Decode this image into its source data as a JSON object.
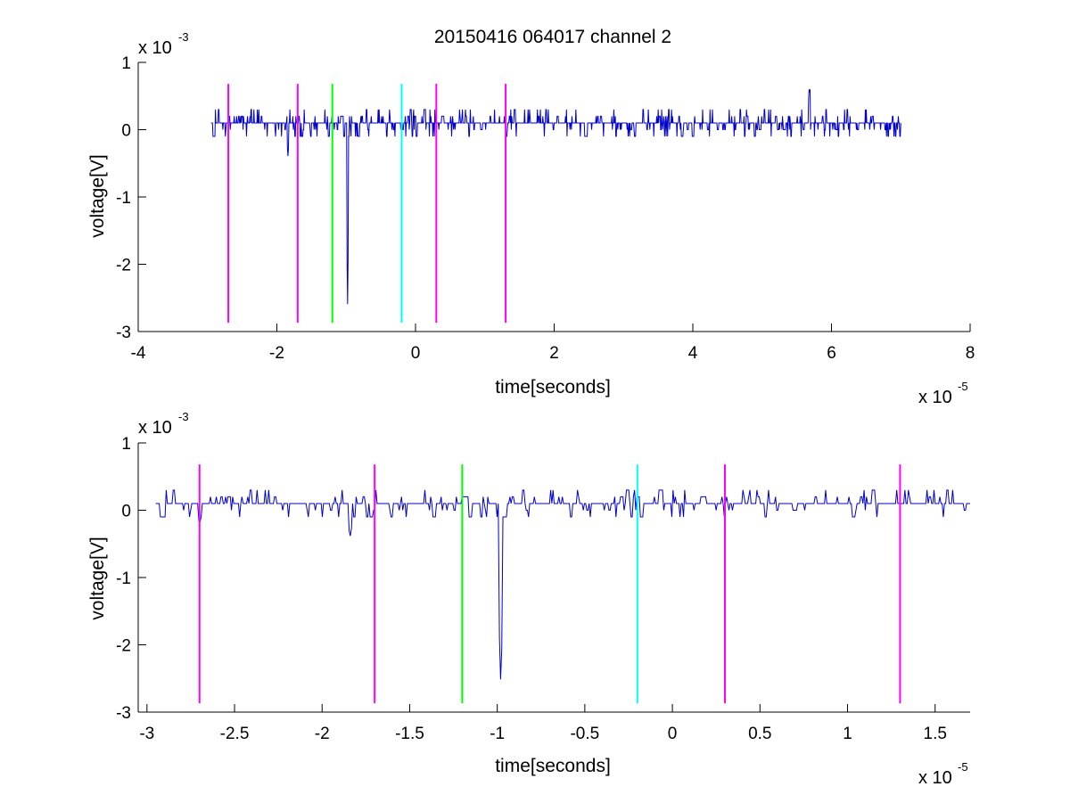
{
  "chart_data": [
    {
      "type": "line",
      "title": "20150416 064017 channel 2",
      "xlabel": "time[seconds]",
      "ylabel": "voltage[V]",
      "x_multiplier_label": {
        "base": "x 10",
        "exp": "-5"
      },
      "y_multiplier_label": {
        "base": "x 10",
        "exp": "-3"
      },
      "xlim": [
        -4,
        8
      ],
      "ylim": [
        -3,
        1
      ],
      "xticks": [
        -4,
        -2,
        0,
        2,
        4,
        6,
        8
      ],
      "xtick_labels": [
        "-4",
        "-2",
        "0",
        "2",
        "4",
        "6",
        "8"
      ],
      "yticks": [
        -3,
        -2,
        -1,
        0,
        1
      ],
      "ytick_labels": [
        "-3",
        "-2",
        "-1",
        "0",
        "1"
      ],
      "grid": false,
      "signal": {
        "color": "#0000cc",
        "x_start": -2.95,
        "x_end": 7.0,
        "baseline": 0.1,
        "noise_amplitude": 0.3,
        "spikes": [
          {
            "x": -0.98,
            "y": -2.6
          },
          {
            "x": -1.84,
            "y": -0.4
          },
          {
            "x": 5.68,
            "y": 0.65
          }
        ]
      },
      "markers": [
        {
          "x": -2.7,
          "color": "#ff00ff",
          "ymin": -2.87,
          "ymax": 0.68
        },
        {
          "x": -1.7,
          "color": "#ff00ff",
          "ymin": -2.87,
          "ymax": 0.68
        },
        {
          "x": -1.2,
          "color": "#00ff00",
          "ymin": -2.87,
          "ymax": 0.68
        },
        {
          "x": -0.2,
          "color": "#00ffff",
          "ymin": -2.87,
          "ymax": 0.68
        },
        {
          "x": 0.3,
          "color": "#ff00ff",
          "ymin": -2.87,
          "ymax": 0.68
        },
        {
          "x": 1.3,
          "color": "#ff00ff",
          "ymin": -2.87,
          "ymax": 0.68
        }
      ]
    },
    {
      "type": "line",
      "title": "",
      "xlabel": "time[seconds]",
      "ylabel": "voltage[V]",
      "x_multiplier_label": {
        "base": "x 10",
        "exp": "-5"
      },
      "y_multiplier_label": {
        "base": "x 10",
        "exp": "-3"
      },
      "xlim": [
        -3.05,
        1.7
      ],
      "ylim": [
        -3,
        1
      ],
      "xticks": [
        -3,
        -2.5,
        -2,
        -1.5,
        -1,
        -0.5,
        0,
        0.5,
        1,
        1.5
      ],
      "xtick_labels": [
        "-3",
        "-2.5",
        "-2",
        "-1.5",
        "-1",
        "-0.5",
        "0",
        "0.5",
        "1",
        "1.5"
      ],
      "yticks": [
        -3,
        -2,
        -1,
        0,
        1
      ],
      "ytick_labels": [
        "-3",
        "-2",
        "-1",
        "0",
        "1"
      ],
      "grid": false,
      "signal": {
        "color": "#0000cc",
        "x_start": -2.95,
        "x_end": 1.7,
        "baseline": 0.1,
        "noise_amplitude": 0.3,
        "spikes": [
          {
            "x": -0.98,
            "y": -2.6
          },
          {
            "x": -1.84,
            "y": -0.4
          },
          {
            "x": -2.7,
            "y": -0.2
          }
        ]
      },
      "markers": [
        {
          "x": -2.7,
          "color": "#ff00ff",
          "ymin": -2.87,
          "ymax": 0.68
        },
        {
          "x": -1.7,
          "color": "#ff00ff",
          "ymin": -2.87,
          "ymax": 0.68
        },
        {
          "x": -1.2,
          "color": "#00ff00",
          "ymin": -2.87,
          "ymax": 0.68
        },
        {
          "x": -0.2,
          "color": "#00ffff",
          "ymin": -2.87,
          "ymax": 0.68
        },
        {
          "x": 0.3,
          "color": "#ff00ff",
          "ymin": -2.87,
          "ymax": 0.68
        },
        {
          "x": 1.3,
          "color": "#ff00ff",
          "ymin": -2.87,
          "ymax": 0.68
        }
      ]
    }
  ]
}
